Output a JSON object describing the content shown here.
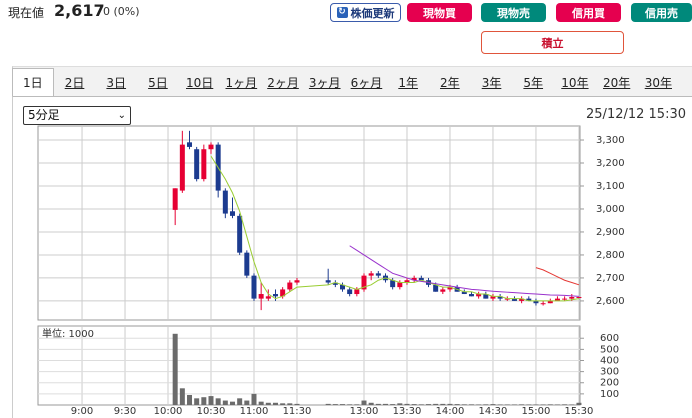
{
  "header": {
    "price_label": "現在値",
    "price": "2,617",
    "change": "0 (0%)",
    "refresh": "株価更新",
    "buttons": [
      {
        "label": "現物買",
        "color": "#e5004f"
      },
      {
        "label": "現物売",
        "color": "#00897b"
      },
      {
        "label": "信用買",
        "color": "#e5004f"
      },
      {
        "label": "信用売",
        "color": "#00897b"
      }
    ],
    "tsumitate": "積立"
  },
  "tabs": [
    {
      "label": "1日",
      "selected": true
    },
    {
      "label": "2日"
    },
    {
      "label": "3日"
    },
    {
      "label": "5日"
    },
    {
      "label": "10日"
    },
    {
      "label": "1ヶ月"
    },
    {
      "label": "2ヶ月"
    },
    {
      "label": "3ヶ月"
    },
    {
      "label": "6ヶ月"
    },
    {
      "label": "1年"
    },
    {
      "label": "2年"
    },
    {
      "label": "3年"
    },
    {
      "label": "5年"
    },
    {
      "label": "10年"
    },
    {
      "label": "20年"
    },
    {
      "label": "30年"
    }
  ],
  "interval": "5分足",
  "timestamp": "25/12/12 15:30",
  "chart_data": [
    {
      "type": "candlestick",
      "x": [
        "10:05",
        "10:10",
        "10:15",
        "10:20",
        "10:25",
        "10:30",
        "10:35",
        "10:40",
        "10:45",
        "10:50",
        "10:55",
        "11:00",
        "11:05",
        "11:10",
        "11:15",
        "11:20",
        "11:25",
        "11:30",
        "12:35",
        "12:40",
        "12:45",
        "12:50",
        "12:55",
        "13:00",
        "13:05",
        "13:10",
        "13:15",
        "13:20",
        "13:25",
        "13:30",
        "13:35",
        "13:40",
        "13:45",
        "13:50",
        "13:55",
        "14:00",
        "14:05",
        "14:10",
        "14:15",
        "14:20",
        "14:25",
        "14:30",
        "14:35",
        "14:40",
        "14:45",
        "14:50",
        "14:55",
        "15:00",
        "15:05",
        "15:10",
        "15:15",
        "15:20",
        "15:25",
        "15:30"
      ],
      "open": [
        2996,
        3080,
        3290,
        3260,
        3130,
        3260,
        3280,
        3080,
        2990,
        2970,
        2810,
        2710,
        2610,
        2610,
        2630,
        2620,
        2650,
        2680,
        2690,
        2680,
        2670,
        2650,
        2630,
        2650,
        2710,
        2720,
        2710,
        2690,
        2660,
        2680,
        2690,
        2700,
        2690,
        2670,
        2640,
        2650,
        2660,
        2640,
        2630,
        2620,
        2630,
        2610,
        2620,
        2610,
        2610,
        2600,
        2610,
        2600,
        2590,
        2590,
        2600,
        2610,
        2610,
        2617
      ],
      "high": [
        3090,
        3340,
        3340,
        3270,
        3280,
        3290,
        3290,
        3090,
        3050,
        2980,
        2820,
        2720,
        2680,
        2650,
        2650,
        2660,
        2690,
        2700,
        2740,
        2690,
        2680,
        2660,
        2660,
        2720,
        2730,
        2730,
        2720,
        2700,
        2690,
        2700,
        2710,
        2710,
        2700,
        2680,
        2660,
        2670,
        2670,
        2650,
        2640,
        2640,
        2640,
        2630,
        2630,
        2620,
        2620,
        2620,
        2620,
        2610,
        2600,
        2610,
        2620,
        2620,
        2630,
        2617
      ],
      "low": [
        2930,
        3070,
        3260,
        3120,
        3120,
        3240,
        3050,
        2960,
        2960,
        2800,
        2700,
        2600,
        2560,
        2600,
        2600,
        2610,
        2640,
        2670,
        2670,
        2660,
        2640,
        2620,
        2620,
        2640,
        2690,
        2700,
        2680,
        2650,
        2650,
        2670,
        2680,
        2690,
        2660,
        2640,
        2630,
        2640,
        2640,
        2630,
        2620,
        2610,
        2610,
        2600,
        2600,
        2600,
        2600,
        2590,
        2600,
        2580,
        2580,
        2590,
        2600,
        2600,
        2600,
        2617
      ],
      "close": [
        3090,
        3280,
        3270,
        3130,
        3260,
        3280,
        3080,
        2980,
        2970,
        2810,
        2710,
        2610,
        2630,
        2620,
        2620,
        2650,
        2680,
        2690,
        2680,
        2670,
        2650,
        2630,
        2650,
        2710,
        2720,
        2710,
        2690,
        2660,
        2680,
        2690,
        2700,
        2690,
        2670,
        2640,
        2650,
        2660,
        2640,
        2630,
        2620,
        2630,
        2610,
        2620,
        2610,
        2610,
        2600,
        2610,
        2600,
        2590,
        2590,
        2600,
        2610,
        2610,
        2617,
        2617
      ],
      "up_color": "#e60033",
      "down_color": "#1c3b8f",
      "lines": [
        {
          "color": "#9acd32",
          "values": [
            null,
            null,
            null,
            null,
            null,
            3230,
            3180,
            3130,
            3070,
            2990,
            2880,
            2770,
            2680,
            2630,
            2610,
            2620,
            2640,
            2660,
            2670,
            2680,
            2670,
            2660,
            2650,
            2660,
            2670,
            2690,
            2700,
            2690,
            2680,
            2680,
            2680,
            2690,
            2680,
            2670,
            2660,
            2660,
            2650,
            2640,
            2640,
            2630,
            2630,
            2620,
            2620,
            2610,
            2610,
            2610,
            2600,
            2600,
            2600,
            2600,
            2600,
            2600,
            2605,
            2610
          ]
        },
        {
          "color": "#9932cc",
          "values": [
            null,
            null,
            null,
            null,
            null,
            null,
            null,
            null,
            null,
            null,
            null,
            null,
            null,
            null,
            null,
            null,
            null,
            null,
            null,
            null,
            null,
            2840,
            2820,
            2800,
            2780,
            2760,
            2740,
            2720,
            2710,
            2700,
            2690,
            2685,
            2680,
            2675,
            2670,
            2665,
            2660,
            2655,
            2650,
            2648,
            2645,
            2642,
            2640,
            2638,
            2636,
            2634,
            2632,
            2630,
            2628,
            2626,
            2625,
            2624,
            2622,
            2620
          ]
        },
        {
          "color": "#e53935",
          "values": [
            null,
            null,
            null,
            null,
            null,
            null,
            null,
            null,
            null,
            null,
            null,
            null,
            null,
            null,
            null,
            null,
            null,
            null,
            null,
            null,
            null,
            null,
            null,
            null,
            null,
            null,
            null,
            null,
            null,
            null,
            null,
            null,
            null,
            null,
            null,
            null,
            null,
            null,
            null,
            null,
            null,
            null,
            null,
            null,
            null,
            null,
            null,
            2745,
            2735,
            2720,
            2705,
            2690,
            2680,
            2670
          ]
        }
      ],
      "ylim": [
        2517,
        3361
      ],
      "yticks": [
        {
          "value": 2600,
          "label": "2,600"
        },
        {
          "value": 2700,
          "label": "2,700"
        },
        {
          "value": 2800,
          "label": "2,800"
        },
        {
          "value": 2900,
          "label": "2,900"
        },
        {
          "value": 3000,
          "label": "3,000"
        },
        {
          "value": 3100,
          "label": "3,100"
        },
        {
          "value": 3200,
          "label": "3,200"
        },
        {
          "value": 3300,
          "label": "3,300"
        }
      ],
      "grid": true
    },
    {
      "type": "bar",
      "unit_label": "単位: 1000",
      "color": "#6b6b6b",
      "values": [
        640,
        150,
        90,
        60,
        70,
        80,
        60,
        40,
        30,
        60,
        40,
        100,
        30,
        20,
        20,
        15,
        15,
        10,
        10,
        8,
        8,
        6,
        6,
        40,
        20,
        10,
        10,
        8,
        15,
        10,
        8,
        6,
        8,
        10,
        10,
        10,
        8,
        6,
        6,
        5,
        6,
        8,
        5,
        5,
        5,
        6,
        5,
        5,
        5,
        6,
        5,
        6,
        5,
        20
      ],
      "ylim": [
        0,
        710
      ],
      "yticks": [
        100,
        200,
        300,
        400,
        500,
        600
      ],
      "xticks": [
        "9:00",
        "9:30",
        "10:00",
        "10:30",
        "11:00",
        "11:30",
        "13:00",
        "13:30",
        "14:00",
        "14:30",
        "15:00",
        "15:30"
      ],
      "grid": true
    }
  ]
}
